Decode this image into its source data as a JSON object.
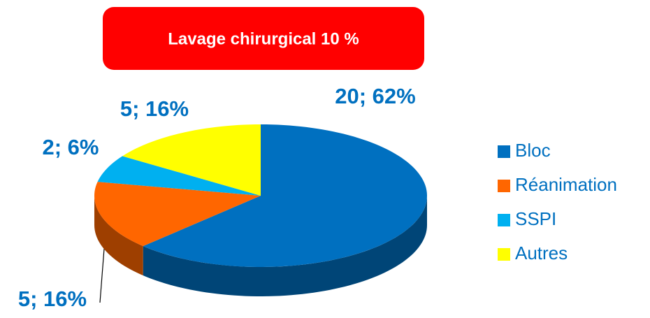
{
  "chart_data": {
    "type": "pie",
    "title": "Lavage chirurgical 10 %",
    "categories": [
      "Bloc",
      "Réanimation",
      "SSPI",
      "Autres"
    ],
    "values": [
      20,
      5,
      2,
      5
    ],
    "value_labels": [
      "20; 62%",
      "5; 16%",
      "2; 6%",
      "5; 16%"
    ],
    "colors": [
      "#0070c0",
      "#ff6600",
      "#00b0f0",
      "#ffff00"
    ],
    "legend": "right"
  }
}
